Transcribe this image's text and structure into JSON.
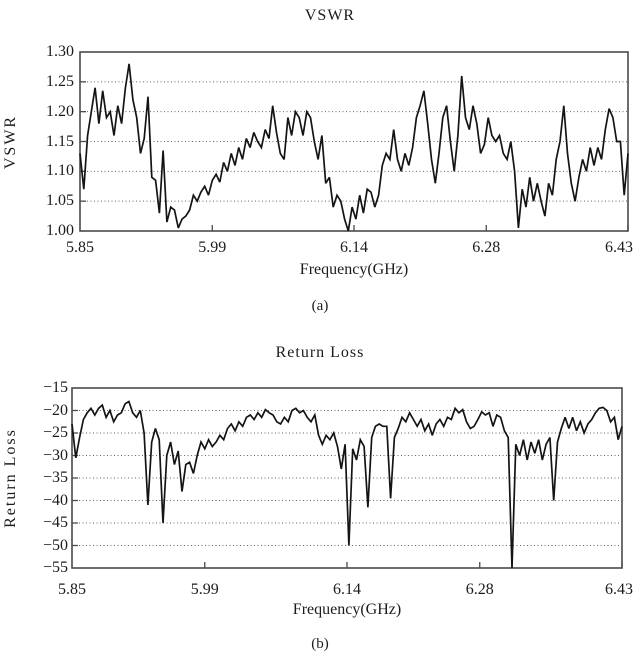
{
  "panels": [
    {
      "key": "vswr",
      "title": "VSWR",
      "ylabel": "VSWR",
      "xlabel": "Frequency(GHz)",
      "caption": "(a)",
      "y_tick_labels": [
        "1.30",
        "1.25",
        "1.20",
        "1.15",
        "1.10",
        "1.05",
        "1.00"
      ],
      "x_tick_labels": [
        "5.85",
        "5.99",
        "6.14",
        "6.28",
        "6.43"
      ]
    },
    {
      "key": "return-loss",
      "title": "Return Loss",
      "ylabel": "Return Loss",
      "xlabel": "Frequency(GHz)",
      "caption": "(b)",
      "y_tick_labels": [
        "−15",
        "−20",
        "−25",
        "−30",
        "−35",
        "−40",
        "−45",
        "−50",
        "−55"
      ],
      "x_tick_labels": [
        "5.85",
        "5.99",
        "6.14",
        "6.28",
        "6.43"
      ]
    }
  ],
  "style": {
    "trace_color": "#141414",
    "border_color": "#4a4a4a",
    "grid_color": "#666666",
    "tick_color": "#4a4a4a",
    "background": "#ffffff"
  },
  "chart_data": [
    {
      "type": "line",
      "title": "VSWR",
      "xlabel": "Frequency(GHz)",
      "ylabel": "VSWR",
      "xlim": [
        5.85,
        6.43
      ],
      "ylim": [
        1.0,
        1.3
      ],
      "x_tick_values": [
        5.85,
        5.99,
        6.14,
        6.28,
        6.43
      ],
      "y_tick_values": [
        1.0,
        1.05,
        1.1,
        1.15,
        1.2,
        1.25,
        1.3
      ],
      "grid": "horizontal-dotted",
      "legend": null,
      "n_points": 146,
      "x_uniform": {
        "start": 5.85,
        "step": 0.004
      },
      "y": [
        1.13,
        1.07,
        1.16,
        1.2,
        1.24,
        1.18,
        1.235,
        1.19,
        1.2,
        1.16,
        1.21,
        1.18,
        1.24,
        1.28,
        1.22,
        1.19,
        1.13,
        1.155,
        1.225,
        1.09,
        1.085,
        1.03,
        1.135,
        1.015,
        1.04,
        1.035,
        1.005,
        1.02,
        1.025,
        1.035,
        1.06,
        1.05,
        1.065,
        1.075,
        1.06,
        1.085,
        1.095,
        1.082,
        1.115,
        1.1,
        1.13,
        1.11,
        1.14,
        1.12,
        1.155,
        1.14,
        1.165,
        1.15,
        1.14,
        1.17,
        1.155,
        1.21,
        1.165,
        1.13,
        1.12,
        1.19,
        1.16,
        1.2,
        1.19,
        1.16,
        1.2,
        1.19,
        1.15,
        1.12,
        1.16,
        1.08,
        1.09,
        1.04,
        1.06,
        1.05,
        1.02,
        1.0,
        1.04,
        1.02,
        1.06,
        1.03,
        1.07,
        1.065,
        1.04,
        1.06,
        1.11,
        1.13,
        1.12,
        1.17,
        1.12,
        1.1,
        1.13,
        1.11,
        1.14,
        1.19,
        1.21,
        1.235,
        1.18,
        1.12,
        1.08,
        1.13,
        1.19,
        1.21,
        1.15,
        1.1,
        1.16,
        1.26,
        1.19,
        1.17,
        1.21,
        1.18,
        1.13,
        1.145,
        1.19,
        1.16,
        1.15,
        1.16,
        1.13,
        1.12,
        1.15,
        1.1,
        1.005,
        1.07,
        1.04,
        1.09,
        1.05,
        1.08,
        1.05,
        1.025,
        1.08,
        1.06,
        1.12,
        1.15,
        1.21,
        1.13,
        1.08,
        1.05,
        1.09,
        1.12,
        1.1,
        1.14,
        1.11,
        1.14,
        1.12,
        1.17,
        1.205,
        1.19,
        1.15,
        1.15,
        1.06,
        1.13
      ]
    },
    {
      "type": "line",
      "title": "Return Loss",
      "xlabel": "Frequency(GHz)",
      "ylabel": "Return Loss",
      "xlim": [
        5.85,
        6.43
      ],
      "ylim": [
        -55,
        -15
      ],
      "x_tick_values": [
        5.85,
        5.99,
        6.14,
        6.28,
        6.43
      ],
      "y_tick_values": [
        -15,
        -20,
        -25,
        -30,
        -35,
        -40,
        -45,
        -50,
        -55
      ],
      "grid": "horizontal-dotted",
      "legend": null,
      "n_points": 146,
      "x_uniform": {
        "start": 5.85,
        "step": 0.004
      },
      "y": [
        -23,
        -30.5,
        -26,
        -22,
        -20.5,
        -19.5,
        -21,
        -19.5,
        -18.8,
        -21.5,
        -20,
        -22.5,
        -21,
        -20.5,
        -18.5,
        -18,
        -20.5,
        -21.5,
        -20,
        -25,
        -41,
        -27,
        -24,
        -26.5,
        -45,
        -30,
        -27,
        -32,
        -29,
        -38,
        -32,
        -31.5,
        -34,
        -30,
        -27,
        -28.5,
        -26.5,
        -28,
        -27,
        -25.5,
        -26.5,
        -24,
        -23,
        -24.5,
        -22.5,
        -23.5,
        -21.5,
        -21,
        -22,
        -20.5,
        -21.5,
        -19.8,
        -20.5,
        -21,
        -22.5,
        -23,
        -21.5,
        -22.5,
        -20,
        -19.5,
        -20.5,
        -20,
        -21.5,
        -22.5,
        -21,
        -25.5,
        -27.5,
        -25.5,
        -26.5,
        -25,
        -28,
        -33,
        -27.5,
        -50,
        -28.5,
        -31,
        -26.5,
        -28,
        -41.5,
        -26,
        -23.5,
        -23,
        -23.5,
        -23.5,
        -39.5,
        -26,
        -24,
        -21.5,
        -22.5,
        -20.5,
        -22,
        -23.5,
        -22,
        -24.5,
        -23,
        -25.5,
        -23,
        -22,
        -23.5,
        -21.5,
        -22,
        -19.5,
        -20.5,
        -19.8,
        -22.5,
        -24,
        -23.5,
        -22,
        -20.3,
        -21,
        -20.5,
        -23.5,
        -21,
        -21.5,
        -24.5,
        -26,
        -55,
        -27.5,
        -30,
        -26.5,
        -31,
        -27,
        -29.5,
        -26.5,
        -31,
        -27.5,
        -26,
        -40,
        -27,
        -24,
        -21.5,
        -24,
        -21.5,
        -24.5,
        -22.5,
        -25,
        -23,
        -22,
        -20.5,
        -19.5,
        -19.3,
        -20,
        -22.5,
        -21.5,
        -26.5,
        -23.5
      ]
    }
  ]
}
